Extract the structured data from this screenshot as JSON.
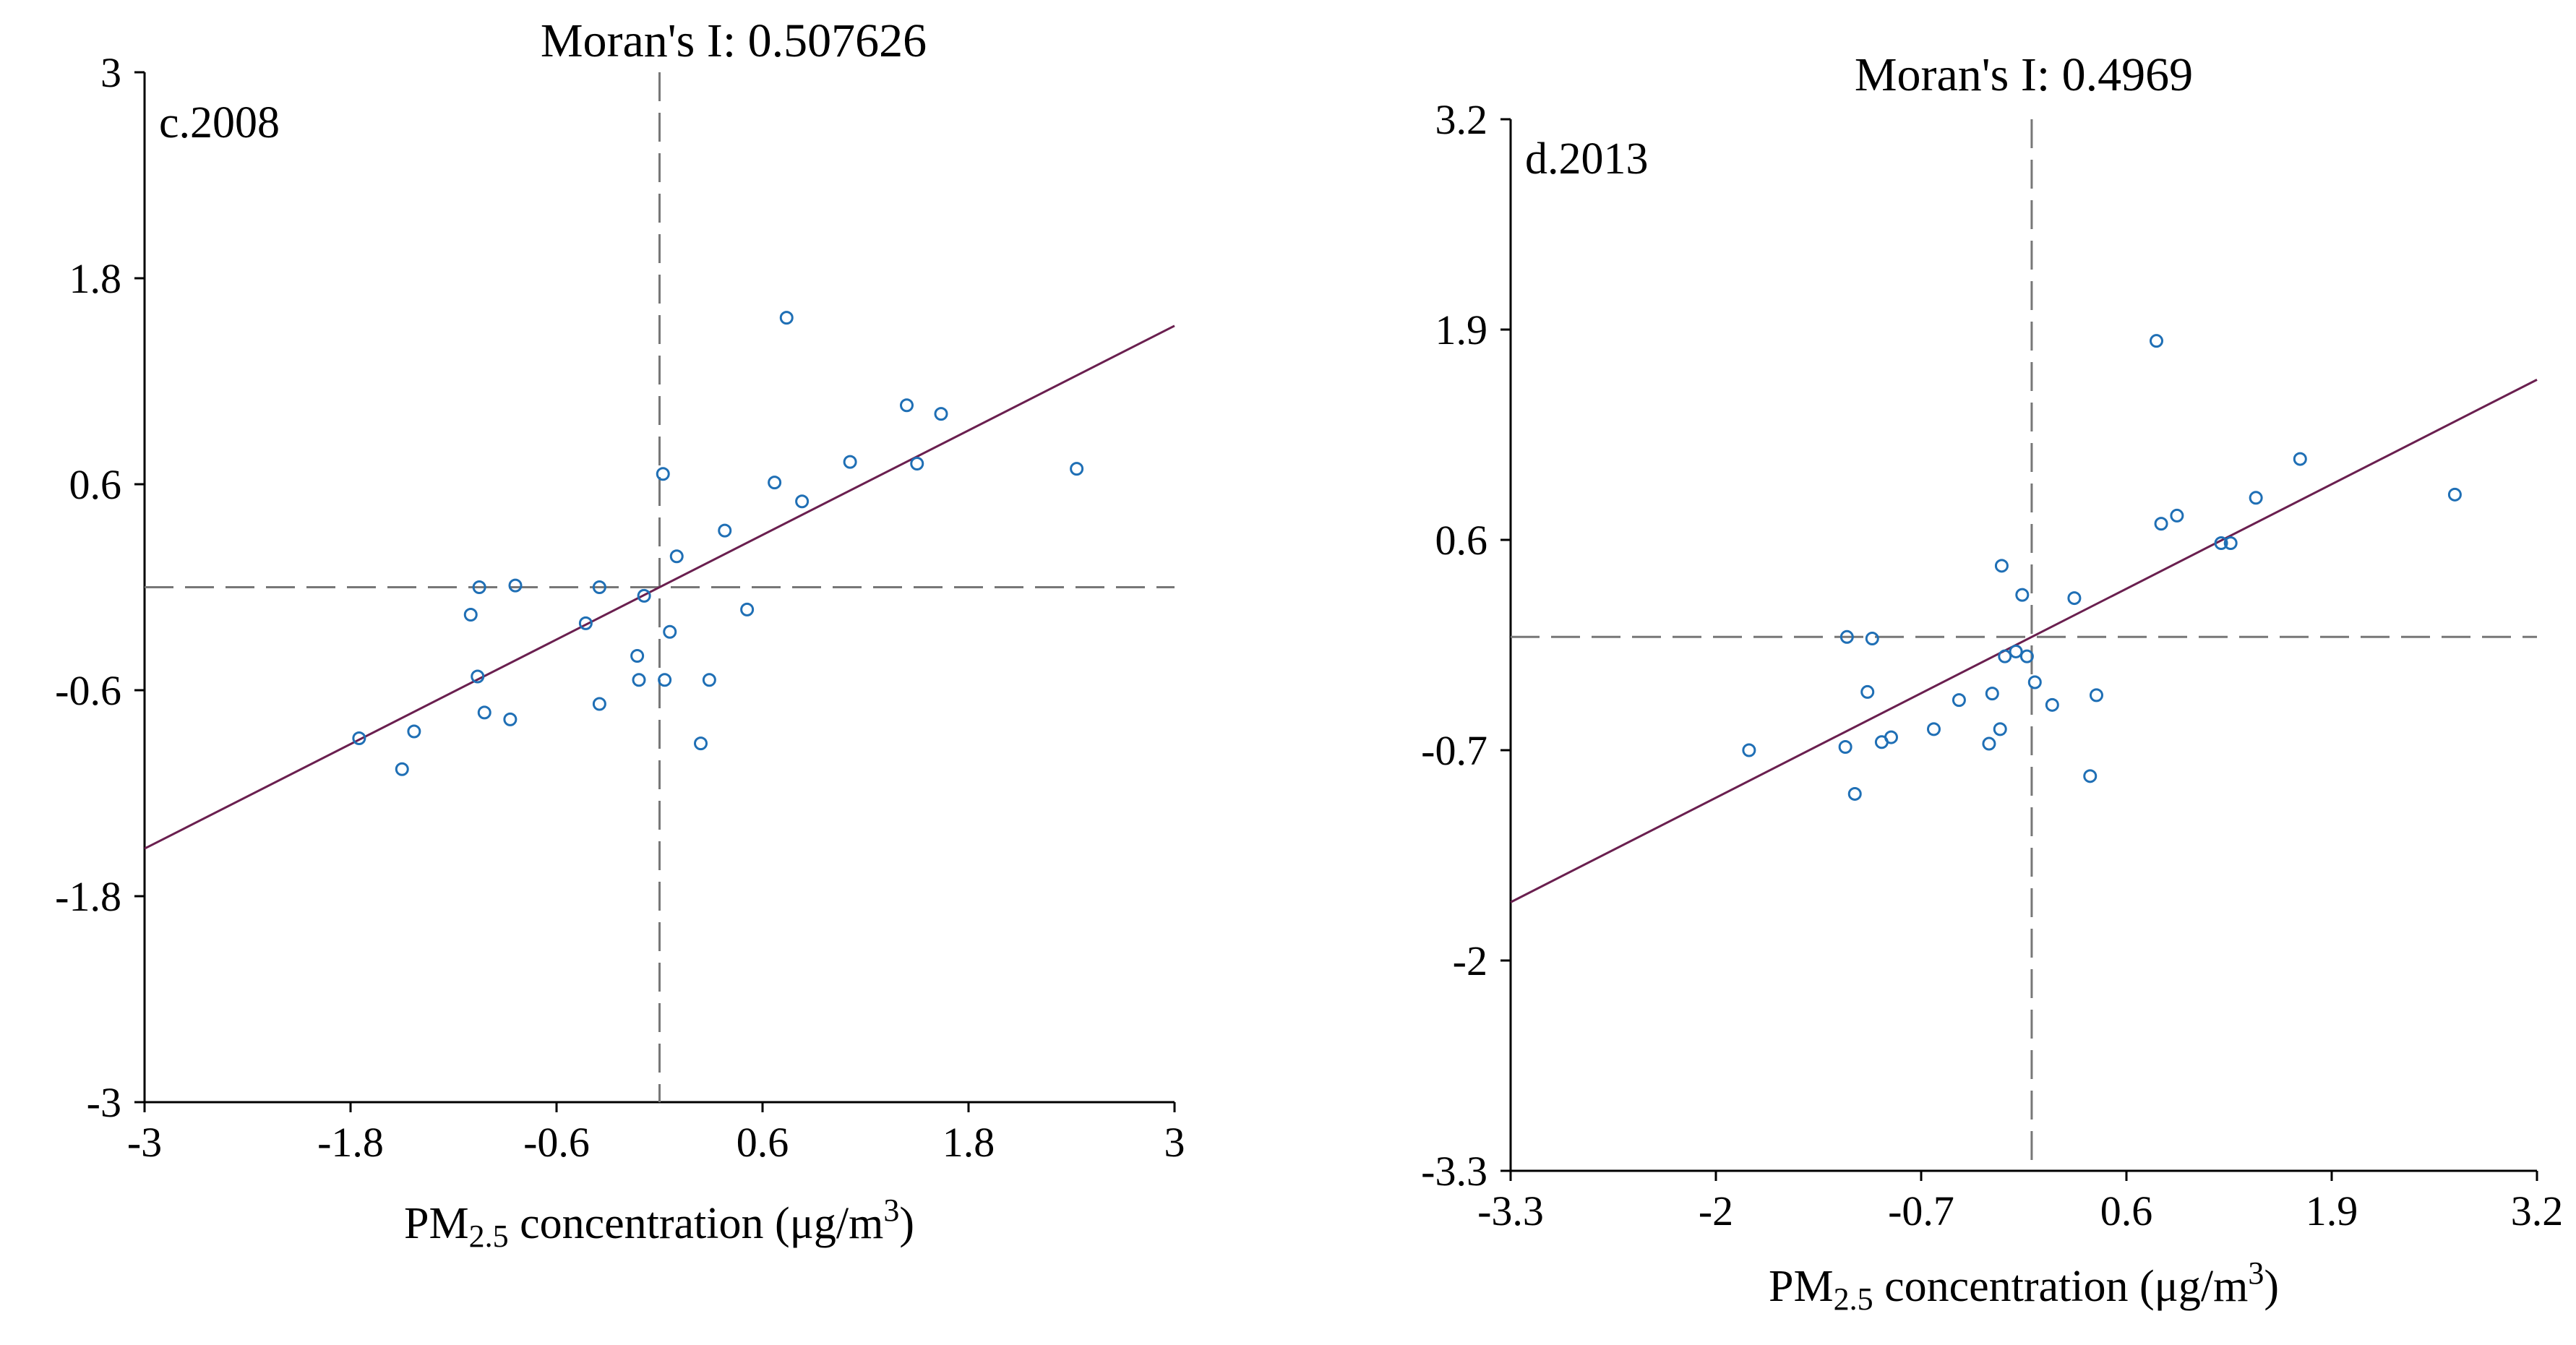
{
  "chart_data": [
    {
      "type": "scatter",
      "panel_label": "c.2008",
      "title": "Moran's I: 0.507626",
      "xlabel_main": "PM",
      "xlabel_sub": "2.5",
      "xlabel_rest": " concentration (μg/m",
      "xlabel_sup": "3",
      "xlabel_end": ")",
      "xlim": [
        -3,
        3
      ],
      "ylim": [
        -3,
        3
      ],
      "xticks": [
        -3,
        -1.8,
        -0.6,
        0.6,
        1.8,
        3
      ],
      "xtick_labels": [
        "-3",
        "-1.8",
        "-0.6",
        "0.6",
        "1.8",
        "3"
      ],
      "yticks": [
        3,
        1.8,
        0.6,
        -0.6,
        -1.8,
        -3
      ],
      "ytick_labels": [
        "3",
        "1.8",
        "0.6",
        "-0.6",
        "-1.8",
        "-3"
      ],
      "slope": 0.507626,
      "regression_color": "#6a1f4f",
      "point_color": "#1f6fb5",
      "points": [
        [
          -1.75,
          -0.88
        ],
        [
          -1.5,
          -1.06
        ],
        [
          -1.43,
          -0.84
        ],
        [
          -1.1,
          -0.16
        ],
        [
          -1.06,
          -0.52
        ],
        [
          -1.02,
          -0.73
        ],
        [
          -0.87,
          -0.77
        ],
        [
          -0.84,
          0.01
        ],
        [
          -1.05,
          0.0
        ],
        [
          -0.43,
          -0.21
        ],
        [
          -0.35,
          -0.68
        ],
        [
          -0.35,
          0.0
        ],
        [
          -0.13,
          -0.4
        ],
        [
          -0.12,
          -0.54
        ],
        [
          -0.09,
          -0.05
        ],
        [
          0.02,
          0.66
        ],
        [
          0.03,
          -0.54
        ],
        [
          0.06,
          -0.26
        ],
        [
          0.1,
          0.18
        ],
        [
          0.24,
          -0.91
        ],
        [
          0.29,
          -0.54
        ],
        [
          0.38,
          0.33
        ],
        [
          0.51,
          -0.13
        ],
        [
          0.67,
          0.61
        ],
        [
          0.74,
          1.57
        ],
        [
          0.83,
          0.5
        ],
        [
          1.11,
          0.73
        ],
        [
          1.44,
          1.06
        ],
        [
          1.5,
          0.72
        ],
        [
          1.64,
          1.01
        ],
        [
          2.43,
          0.69
        ]
      ]
    },
    {
      "type": "scatter",
      "panel_label": "d.2013",
      "title": "Moran's I: 0.4969",
      "xlabel_main": "PM",
      "xlabel_sub": "2.5",
      "xlabel_rest": " concentration (μg/m",
      "xlabel_sup": "3",
      "xlabel_end": ")",
      "xlim": [
        -3.3,
        3.2
      ],
      "ylim": [
        -3.3,
        3.2
      ],
      "xticks": [
        -3.3,
        -2,
        -0.7,
        0.6,
        1.9,
        3.2
      ],
      "xtick_labels": [
        "-3.3",
        "-2",
        "-0.7",
        "0.6",
        "1.9",
        "3.2"
      ],
      "yticks": [
        3.2,
        1.9,
        0.6,
        -0.7,
        -2,
        -3.3
      ],
      "ytick_labels": [
        "3.2",
        "1.9",
        "0.6",
        "-0.7",
        "-2",
        "-3.3"
      ],
      "slope": 0.4969,
      "regression_color": "#6a1f4f",
      "point_color": "#1f6fb5",
      "points": [
        [
          -1.79,
          -0.7
        ],
        [
          -1.18,
          -0.68
        ],
        [
          -1.12,
          -0.97
        ],
        [
          -1.04,
          -0.34
        ],
        [
          -0.95,
          -0.65
        ],
        [
          -0.89,
          -0.62
        ],
        [
          -0.62,
          -0.57
        ],
        [
          -0.46,
          -0.39
        ],
        [
          -0.27,
          -0.66
        ],
        [
          -0.25,
          -0.35
        ],
        [
          -0.2,
          -0.57
        ],
        [
          -0.19,
          0.44
        ],
        [
          -0.17,
          -0.12
        ],
        [
          -0.1,
          -0.09
        ],
        [
          -0.06,
          0.26
        ],
        [
          -0.03,
          -0.12
        ],
        [
          0.02,
          -0.28
        ],
        [
          0.13,
          -0.42
        ],
        [
          0.27,
          0.24
        ],
        [
          0.37,
          -0.86
        ],
        [
          0.41,
          -0.36
        ],
        [
          0.79,
          1.83
        ],
        [
          0.82,
          0.7
        ],
        [
          0.92,
          0.75
        ],
        [
          1.2,
          0.58
        ],
        [
          1.26,
          0.58
        ],
        [
          1.42,
          0.86
        ],
        [
          1.7,
          1.1
        ],
        [
          2.68,
          0.88
        ],
        [
          -1.17,
          0.0
        ],
        [
          -1.01,
          -0.01
        ]
      ]
    }
  ]
}
